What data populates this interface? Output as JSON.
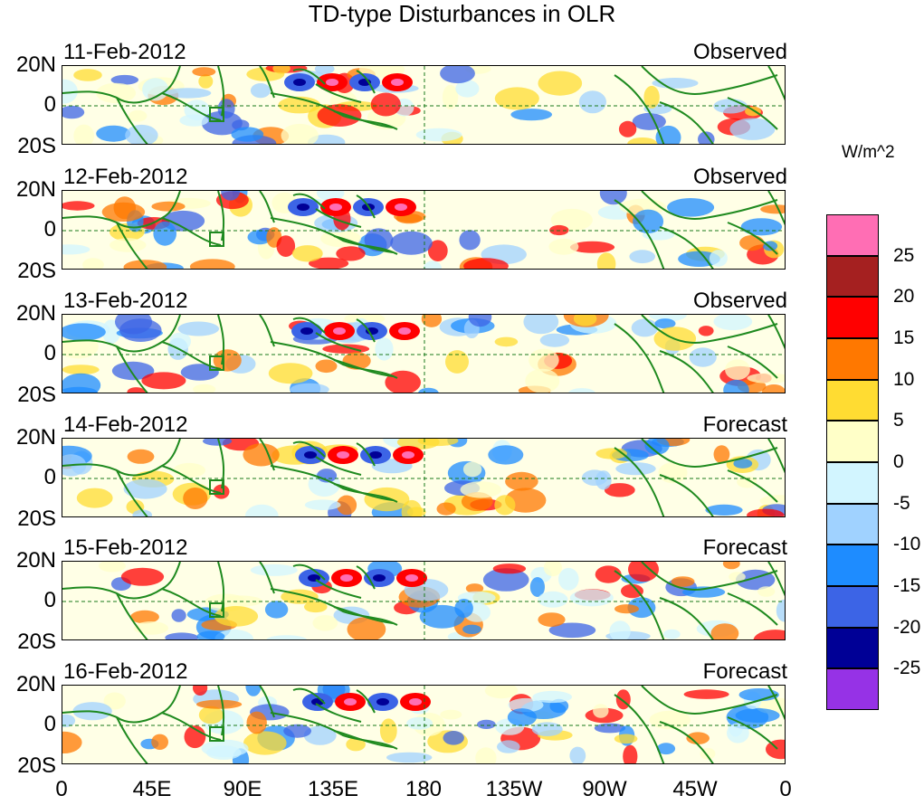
{
  "title": "TD-type Disturbances in OLR",
  "colorbar": {
    "unit_label": "W/m^2",
    "colors": [
      "#ff6eb4",
      "#a52020",
      "#ff0000",
      "#ff7800",
      "#ffdc32",
      "#ffffc8",
      "#d2f5ff",
      "#a0d2ff",
      "#1e8cff",
      "#3c64e6",
      "#000096",
      "#9632e6"
    ],
    "tick_labels": [
      "25",
      "20",
      "15",
      "10",
      "5",
      "0",
      "-5",
      "-10",
      "-15",
      "-20",
      "-25"
    ]
  },
  "lat_labels": [
    "20N",
    "0",
    "20S"
  ],
  "lon_labels": [
    "0",
    "45E",
    "90E",
    "135E",
    "180",
    "135W",
    "90W",
    "45W",
    "0"
  ],
  "panels": [
    {
      "date": "11-Feb-2012",
      "kind": "Observed"
    },
    {
      "date": "12-Feb-2012",
      "kind": "Observed"
    },
    {
      "date": "13-Feb-2012",
      "kind": "Observed"
    },
    {
      "date": "14-Feb-2012",
      "kind": "Forecast"
    },
    {
      "date": "15-Feb-2012",
      "kind": "Forecast"
    },
    {
      "date": "16-Feb-2012",
      "kind": "Forecast"
    }
  ]
}
